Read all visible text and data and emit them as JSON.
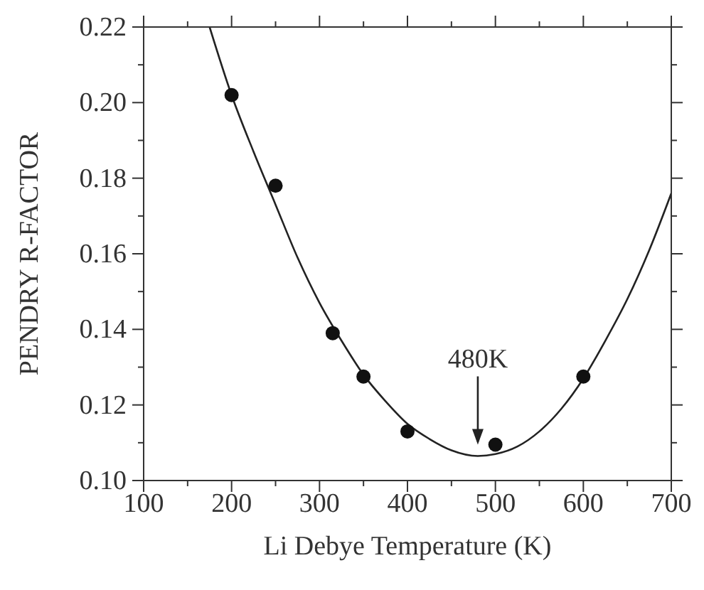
{
  "chart_data": {
    "type": "scatter",
    "xlabel": "Li Debye Temperature (K)",
    "ylabel": "PENDRY R-FACTOR",
    "xlim": [
      100,
      700
    ],
    "ylim": [
      0.1,
      0.22
    ],
    "xticks": [
      100,
      {
        "value": 150,
        "label": null
      },
      200,
      {
        "value": 250,
        "label": null
      },
      300,
      {
        "value": 350,
        "label": null
      },
      400,
      {
        "value": 450,
        "label": null
      },
      500,
      {
        "value": 550,
        "label": null
      },
      600,
      {
        "value": 650,
        "label": null
      },
      700
    ],
    "yticks": [
      {
        "value": 0.1,
        "label": "0.10"
      },
      {
        "value": 0.11,
        "label": null
      },
      {
        "value": 0.12,
        "label": "0.12"
      },
      {
        "value": 0.13,
        "label": null
      },
      {
        "value": 0.14,
        "label": "0.14"
      },
      {
        "value": 0.15,
        "label": null
      },
      {
        "value": 0.16,
        "label": "0.16"
      },
      {
        "value": 0.17,
        "label": null
      },
      {
        "value": 0.18,
        "label": "0.18"
      },
      {
        "value": 0.19,
        "label": null
      },
      {
        "value": 0.2,
        "label": "0.20"
      },
      {
        "value": 0.21,
        "label": null
      },
      {
        "value": 0.22,
        "label": "0.22"
      }
    ],
    "series": [
      {
        "color": "#111111",
        "marker": "circle",
        "x": [
          200,
          250,
          315,
          350,
          400,
          500,
          600
        ],
        "values": [
          0.202,
          0.178,
          0.139,
          0.1275,
          0.113,
          0.1095,
          0.1275
        ]
      },
      {
        "type": "line",
        "color": "#222222",
        "marker": "none",
        "line_style": "solid",
        "x": [
          175,
          200,
          225,
          250,
          275,
          300,
          325,
          350,
          375,
          400,
          425,
          450,
          480,
          500,
          525,
          550,
          575,
          600,
          625,
          650,
          675,
          700
        ],
        "values": [
          0.22,
          0.202,
          0.187,
          0.173,
          0.159,
          0.147,
          0.137,
          0.128,
          0.121,
          0.115,
          0.111,
          0.108,
          0.1065,
          0.107,
          0.109,
          0.113,
          0.119,
          0.127,
          0.137,
          0.148,
          0.161,
          0.176
        ]
      }
    ],
    "annotations": [
      {
        "text": "480K",
        "x": 480,
        "y": 0.108
      }
    ]
  }
}
